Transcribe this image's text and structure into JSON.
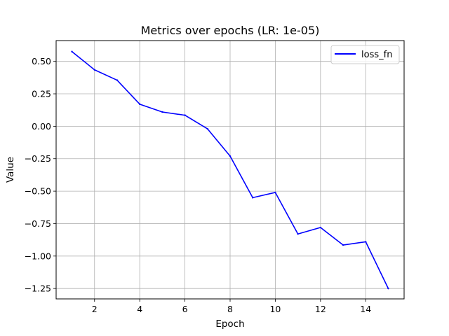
{
  "chart_data": {
    "type": "line",
    "title": "Metrics over epochs (LR: 1e-05)",
    "xlabel": "Epoch",
    "ylabel": "Value",
    "xlim": [
      0.3,
      15.7
    ],
    "ylim": [
      -1.33,
      0.66
    ],
    "grid": true,
    "legend_position": "top-right",
    "x_ticks": [
      2,
      4,
      6,
      8,
      10,
      12,
      14
    ],
    "x_tick_labels": [
      "2",
      "4",
      "6",
      "8",
      "10",
      "12",
      "14"
    ],
    "y_ticks": [
      0.5,
      0.25,
      0.0,
      -0.25,
      -0.5,
      -0.75,
      -1.0,
      -1.25
    ],
    "y_tick_labels": [
      "0.50",
      "0.25",
      "0.00",
      "−0.25",
      "−0.50",
      "−0.75",
      "−1.00",
      "−1.25"
    ],
    "series": [
      {
        "name": "loss_fn",
        "color": "#0000ff",
        "x": [
          1,
          2,
          3,
          4,
          5,
          6,
          7,
          8,
          9,
          10,
          11,
          12,
          13,
          14,
          15
        ],
        "values": [
          0.575,
          0.435,
          0.355,
          0.17,
          0.11,
          0.085,
          -0.02,
          -0.23,
          -0.55,
          -0.51,
          -0.83,
          -0.78,
          -0.915,
          -0.89,
          -1.25
        ]
      }
    ]
  }
}
